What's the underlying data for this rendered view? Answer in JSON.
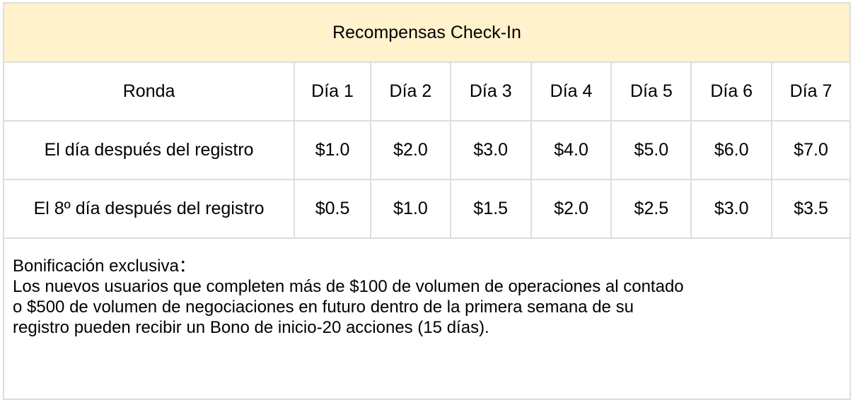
{
  "title": "Recompensas Check-In",
  "header": [
    "Ronda",
    "Día 1",
    "Día 2",
    "Día 3",
    "Día 4",
    "Día 5",
    "Día 6",
    "Día 7"
  ],
  "rows": [
    [
      "El día después del registro",
      "$1.0",
      "$2.0",
      "$3.0",
      "$4.0",
      "$5.0",
      "$6.0",
      "$7.0"
    ],
    [
      "El 8º día después del registro",
      "$0.5",
      "$1.0",
      "$1.5",
      "$2.0",
      "$2.5",
      "$3.0",
      "$3.5"
    ]
  ],
  "note": {
    "heading": "Bonificación exclusiva：",
    "lines": [
      "Los nuevos usuarios que completen más de $100 de volumen de operaciones al contado",
      "o $500 de volumen de negociaciones en futuro dentro de la primera semana de su",
      "registro pueden recibir un Bono de inicio-20 acciones (15 días)."
    ]
  },
  "colors": {
    "title_bg": "#fff2cc",
    "border": "#dedde3"
  }
}
